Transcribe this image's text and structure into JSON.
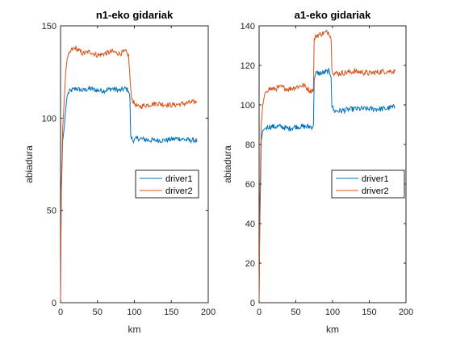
{
  "chart_data": [
    {
      "type": "line",
      "title": "n1-eko gidariak",
      "xlabel": "km",
      "ylabel": "abiadura",
      "xlim": [
        0,
        200
      ],
      "ylim": [
        0,
        150
      ],
      "xticks": [
        0,
        50,
        100,
        150,
        200
      ],
      "yticks": [
        0,
        50,
        100,
        150
      ],
      "grid": false,
      "legend": {
        "placement": "right-middle"
      },
      "series": [
        {
          "name": "driver1",
          "color": "#0072BD",
          "x": [
            0,
            1,
            3,
            5,
            7,
            9,
            11,
            15,
            20,
            30,
            40,
            50,
            60,
            70,
            80,
            88,
            92,
            94,
            95,
            98,
            105,
            120,
            140,
            160,
            175,
            185
          ],
          "y": [
            0,
            60,
            88,
            95,
            105,
            112,
            114,
            115,
            116,
            115,
            116,
            115,
            115,
            116,
            115,
            116,
            115,
            111,
            90,
            88,
            89,
            88,
            88,
            89,
            88,
            88
          ]
        },
        {
          "name": "driver2",
          "color": "#D95319",
          "x": [
            0,
            1,
            3,
            5,
            7,
            9,
            11,
            15,
            20,
            30,
            40,
            50,
            60,
            70,
            80,
            88,
            92,
            94,
            95,
            97,
            100,
            105,
            115,
            130,
            150,
            170,
            185
          ],
          "y": [
            0,
            60,
            95,
            110,
            125,
            132,
            134,
            137,
            138,
            135,
            136,
            134,
            135,
            136,
            135,
            136,
            134,
            122,
            115,
            110,
            108,
            106,
            107,
            108,
            107,
            108,
            109
          ]
        }
      ]
    },
    {
      "type": "line",
      "title": "a1-eko gidariak",
      "xlabel": "km",
      "ylabel": "abiadura",
      "xlim": [
        0,
        200
      ],
      "ylim": [
        0,
        140
      ],
      "xticks": [
        0,
        50,
        100,
        150,
        200
      ],
      "yticks": [
        0,
        20,
        40,
        60,
        80,
        100,
        120,
        140
      ],
      "grid": false,
      "legend": {
        "placement": "right-middle"
      },
      "series": [
        {
          "name": "driver1",
          "color": "#0072BD",
          "x": [
            0,
            1,
            3,
            5,
            8,
            12,
            20,
            30,
            40,
            50,
            60,
            70,
            74,
            75,
            78,
            85,
            95,
            98,
            99,
            102,
            110,
            130,
            150,
            170,
            185
          ],
          "y": [
            0,
            40,
            82,
            87,
            88,
            89,
            89,
            89,
            88,
            89,
            89,
            89,
            89,
            114,
            116,
            116,
            117,
            115,
            100,
            97,
            97,
            98,
            98,
            98,
            99
          ]
        },
        {
          "name": "driver2",
          "color": "#D95319",
          "x": [
            0,
            1,
            3,
            5,
            8,
            12,
            20,
            30,
            40,
            50,
            60,
            70,
            74,
            75,
            78,
            85,
            95,
            98,
            99,
            102,
            110,
            130,
            150,
            170,
            185
          ],
          "y": [
            0,
            50,
            90,
            100,
            106,
            108,
            108,
            109,
            108,
            109,
            110,
            107,
            108,
            133,
            135,
            136,
            137,
            134,
            118,
            116,
            116,
            117,
            116,
            117,
            117
          ]
        }
      ]
    }
  ]
}
